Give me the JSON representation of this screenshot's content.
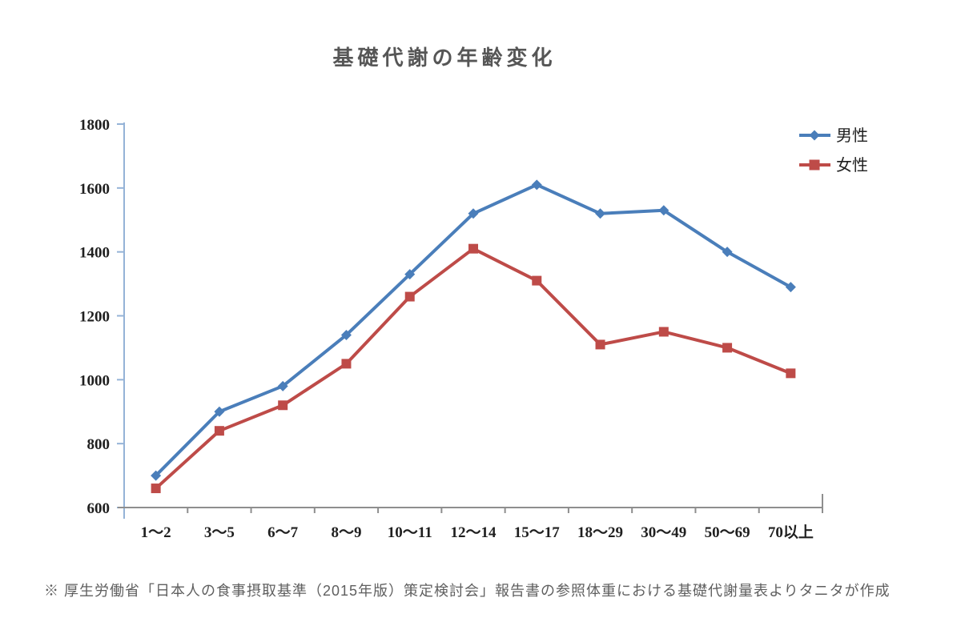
{
  "title": "基礎代謝の年齢変化",
  "source_note": "※  厚生労働省「日本人の食事摂取基準（2015年版）策定検討会」報告書の参照体重における基礎代謝量表よりタニタが作成",
  "chart_data": {
    "type": "line",
    "title": "基礎代謝の年齢変化",
    "categories": [
      "1〜2",
      "3〜5",
      "6〜7",
      "8〜9",
      "10〜11",
      "12〜14",
      "15〜17",
      "18〜29",
      "30〜49",
      "50〜69",
      "70以上"
    ],
    "series": [
      {
        "name": "男性",
        "marker": "diamond",
        "color": "#4A7EBA",
        "values": [
          700,
          900,
          980,
          1140,
          1330,
          1520,
          1610,
          1520,
          1530,
          1400,
          1290
        ]
      },
      {
        "name": "女性",
        "marker": "square",
        "color": "#BE4B48",
        "values": [
          660,
          840,
          920,
          1050,
          1260,
          1410,
          1310,
          1110,
          1150,
          1100,
          1020
        ]
      }
    ],
    "xlabel": "",
    "ylabel": "",
    "ylim": [
      600,
      1800
    ],
    "ytick_step": 200,
    "yticks": [
      600,
      800,
      1000,
      1200,
      1400,
      1600,
      1800
    ],
    "grid": false,
    "legend_position": "top-right",
    "axis_colors": {
      "y_axis": "#95B3D7",
      "x_axis": "#8E8E8E",
      "tick_label": "#1F1F1F"
    }
  }
}
